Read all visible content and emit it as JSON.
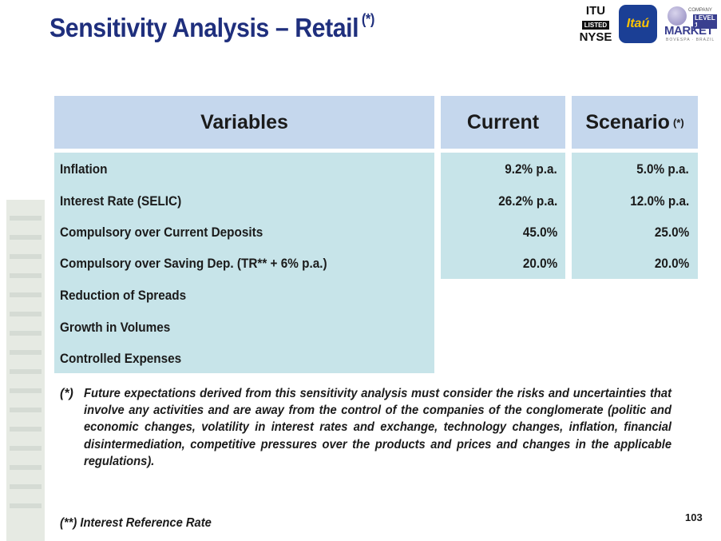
{
  "title": "Sensitivity Analysis – Retail",
  "title_note": "(*)",
  "logos": {
    "itu_top": "ITU",
    "itu_listed": "LISTED",
    "itu_bottom": "NYSE",
    "itau": "Itaú",
    "market_company": "COMPANY",
    "market_level": "LEVEL 1",
    "market_word": "MARKET",
    "market_bovespa": "BOVESPA · BRAZIL"
  },
  "table": {
    "headers": {
      "variables": "Variables",
      "current": "Current",
      "scenario": "Scenario",
      "scenario_note": "(*)"
    },
    "rows": [
      {
        "label": "Inflation",
        "current": "9.2% p.a.",
        "scenario": "5.0% p.a."
      },
      {
        "label": "Interest Rate (SELIC)",
        "current": "26.2% p.a.",
        "scenario": "12.0% p.a."
      },
      {
        "label": "Compulsory over Current Deposits",
        "current": "45.0%",
        "scenario": "25.0%"
      },
      {
        "label": "Compulsory over Saving Dep. (TR** + 6% p.a.)",
        "current": "20.0%",
        "scenario": "20.0%"
      },
      {
        "label": "Reduction of Spreads"
      },
      {
        "label": "Growth in Volumes"
      },
      {
        "label": "Controlled Expenses"
      }
    ]
  },
  "footnotes": {
    "note1_mark": "(*)",
    "note1_text": "Future expectations derived from this sensitivity analysis must consider the risks and uncertainties that involve any activities and are away from the control of the companies of the conglomerate (politic and economic changes, volatility in interest rates and exchange, technology changes, inflation, financial disintermediation, competitive pressures over the products and prices and changes in the applicable regulations).",
    "note2": "(**) Interest Reference Rate"
  },
  "page_number": "103",
  "colors": {
    "title": "#1f2f7d",
    "header_bg": "#c5d7ed",
    "body_bg": "#c7e4e9"
  }
}
